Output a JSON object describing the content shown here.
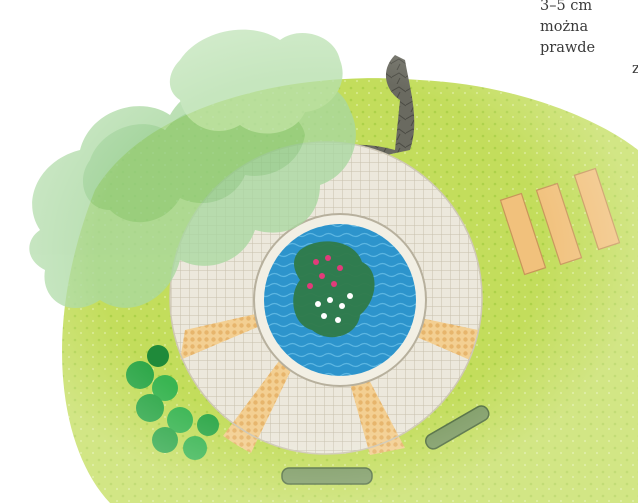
{
  "caption": {
    "lines": [
      "3–5 cm",
      "można",
      "prawde",
      "z"
    ]
  },
  "colors": {
    "lawn": "#c3dd5c",
    "lawn_dark": "#a9cc3d",
    "paving": "#ece8dc",
    "paving_lines": "#b9b3a3",
    "water": "#2a8fc8",
    "tree_canopy": "#a6d59c",
    "wood_planks": "#f1c17c",
    "rockery": "#5b5b52",
    "shrub": "#2fa84a"
  },
  "icons": [
    "tree-canopy-icon",
    "shrub-icon",
    "water-lily-icon",
    "stepping-stone-icon"
  ]
}
